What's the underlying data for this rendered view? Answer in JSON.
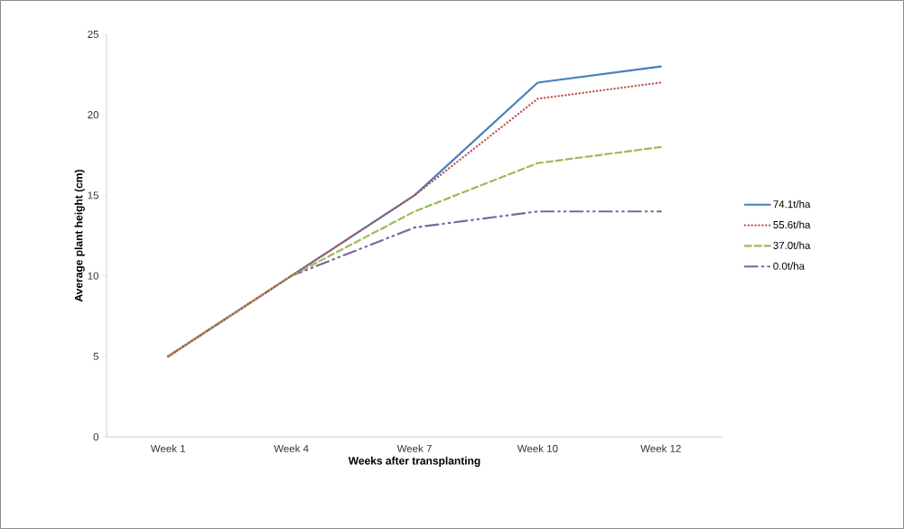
{
  "chart_data": {
    "type": "line",
    "xlabel": "Weeks after transplanting",
    "ylabel": "Average plant height (cm)",
    "categories": [
      "Week 1",
      "Week 4",
      "Week 7",
      "Week 10",
      "Week 12"
    ],
    "series": [
      {
        "name": "74.1t/ha",
        "color": "#4a7ebb",
        "line_style": "solid",
        "values": [
          5,
          10,
          15,
          22,
          23
        ]
      },
      {
        "name": "55.6t/ha",
        "color": "#c0504d",
        "line_style": "dotted",
        "values": [
          5,
          10,
          15,
          21,
          22
        ]
      },
      {
        "name": "37.0t/ha",
        "color": "#9bbb59",
        "line_style": "dashed",
        "values": [
          5,
          10,
          14,
          17,
          18
        ]
      },
      {
        "name": "0.0t/ha",
        "color": "#8064a2",
        "line_style": "dashdotdot",
        "values": [
          5,
          10,
          13,
          14,
          14
        ]
      }
    ],
    "ylim": [
      0,
      25
    ],
    "yticks": [
      0,
      5,
      10,
      15,
      20,
      25
    ],
    "grid": false,
    "legend": "right",
    "marker": "none"
  }
}
